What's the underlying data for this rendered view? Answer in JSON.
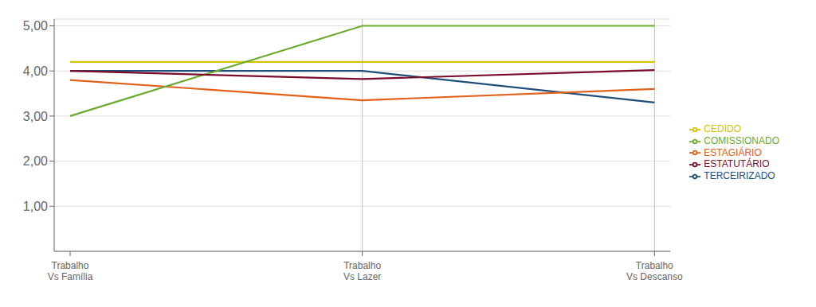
{
  "chart_data": {
    "type": "line",
    "categories": [
      "Trabalho\nVs Família",
      "Trabalho\nVs Lazer",
      "Trabalho\nVs Descanso"
    ],
    "series": [
      {
        "name": "TERCEIRIZADO",
        "color": "#1F4E79",
        "values": [
          4.0,
          4.0,
          3.3
        ]
      },
      {
        "name": "ESTAGIÁRIO",
        "color": "#E2601A",
        "values": [
          3.8,
          3.35,
          3.6
        ]
      },
      {
        "name": "CEDIDO",
        "color": "#D4C200",
        "values": [
          4.2,
          4.2,
          4.2
        ]
      },
      {
        "name": "COMISSIONADO",
        "color": "#6AAB2E",
        "values": [
          3.0,
          5.0,
          5.0
        ]
      },
      {
        "name": "ESTATUTÁRIO",
        "color": "#7B0C2A",
        "values": [
          4.0,
          3.82,
          4.02
        ]
      }
    ],
    "ylim": [
      0,
      5.15
    ],
    "yticks": [
      {
        "value": 1.0,
        "label": "1,00"
      },
      {
        "value": 2.0,
        "label": "2,00"
      },
      {
        "value": 3.0,
        "label": "3,00"
      },
      {
        "value": 4.0,
        "label": "4,00"
      },
      {
        "value": 5.0,
        "label": "5,00"
      }
    ],
    "grid": true,
    "legend": "right"
  }
}
